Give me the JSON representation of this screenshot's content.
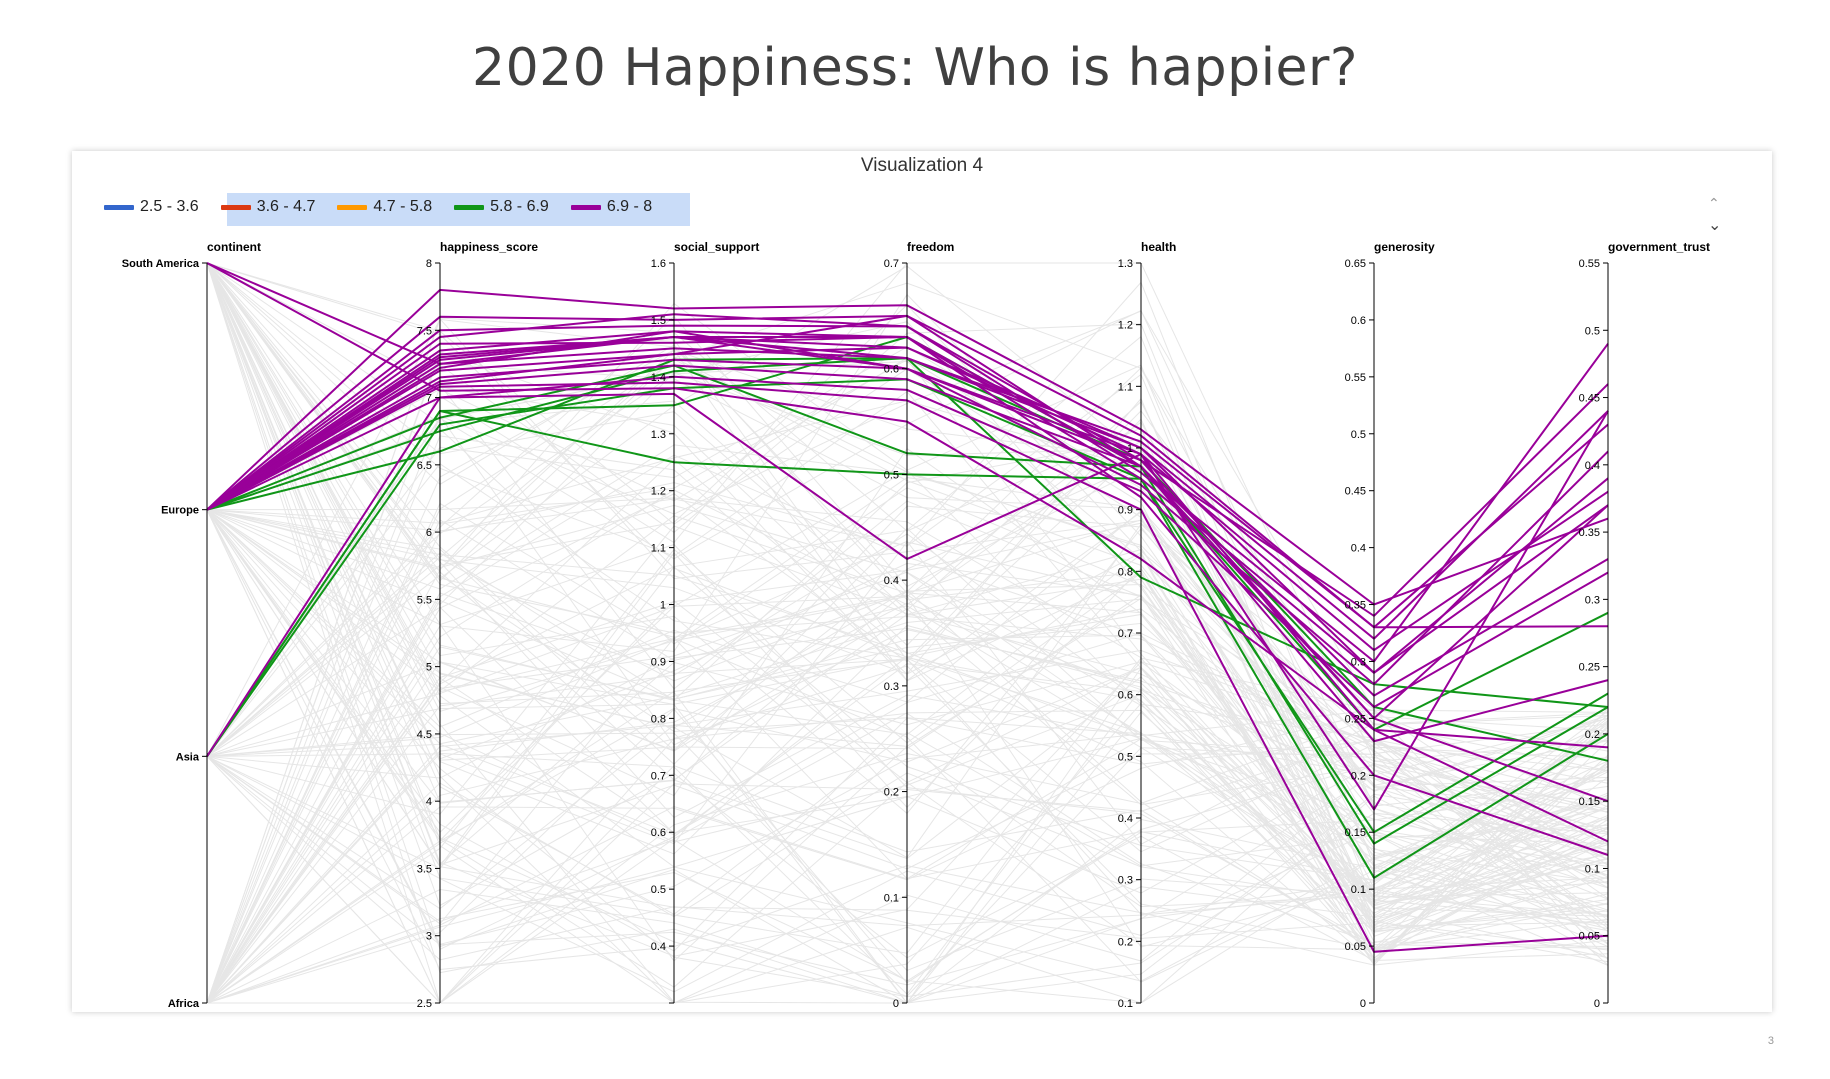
{
  "slide": {
    "title": "2020 Happiness: Who is happier?",
    "page_number": "3"
  },
  "panel": {
    "title": "Visualization 4"
  },
  "nav": {
    "up_icon": "chevron-up-icon",
    "down_icon": "chevron-down-icon"
  },
  "chart_data": {
    "type": "parallel-coordinates",
    "title": "Visualization 4",
    "legend": {
      "placement": "top-left",
      "entries": [
        {
          "label": "2.5 - 3.6",
          "color": "#3366cc",
          "highlighted": false
        },
        {
          "label": "3.6 - 4.7",
          "color": "#dc3912",
          "highlighted": true
        },
        {
          "label": "4.7 - 5.8",
          "color": "#ff9900",
          "highlighted": true
        },
        {
          "label": "5.8 - 6.9",
          "color": "#109618",
          "highlighted": true
        },
        {
          "label": "6.9 - 8",
          "color": "#990099",
          "highlighted": true
        }
      ]
    },
    "context_line_color": "#e6e6e6",
    "axes": [
      {
        "name": "continent",
        "type": "categorical",
        "categories": [
          "South America",
          "Europe",
          "Asia",
          "Africa"
        ]
      },
      {
        "name": "happiness_score",
        "type": "linear",
        "domain": [
          2.5,
          8
        ],
        "ticks": [
          "2.5",
          "3",
          "3.5",
          "4",
          "4.5",
          "5",
          "5.5",
          "6",
          "6.5",
          "7",
          "7.5",
          "8"
        ]
      },
      {
        "name": "social_support",
        "type": "linear",
        "domain": [
          0.3,
          1.6
        ],
        "ticks": [
          "0.4",
          "0.5",
          "0.6",
          "0.7",
          "0.8",
          "0.9",
          "1",
          "1.1",
          "1.2",
          "1.3",
          "1.4",
          "1.5",
          "1.6"
        ]
      },
      {
        "name": "freedom",
        "type": "linear",
        "domain": [
          0,
          0.7
        ],
        "ticks": [
          "0",
          "0.1",
          "0.2",
          "0.3",
          "0.4",
          "0.5",
          "0.6",
          "0.7"
        ]
      },
      {
        "name": "health",
        "type": "linear",
        "domain": [
          0.1,
          1.3
        ],
        "ticks": [
          "0.1",
          "0.2",
          "0.3",
          "0.4",
          "0.5",
          "0.6",
          "0.7",
          "0.8",
          "0.9",
          "1",
          "1.1",
          "1.2",
          "1.3"
        ]
      },
      {
        "name": "generosity",
        "type": "linear",
        "domain": [
          0,
          0.65
        ],
        "ticks": [
          "0",
          "0.05",
          "0.1",
          "0.15",
          "0.2",
          "0.25",
          "0.3",
          "0.35",
          "0.4",
          "0.45",
          "0.5",
          "0.55",
          "0.6",
          "0.65"
        ]
      },
      {
        "name": "government_trust",
        "type": "linear",
        "domain": [
          0,
          0.55
        ],
        "ticks": [
          "0",
          "0.05",
          "0.1",
          "0.15",
          "0.2",
          "0.25",
          "0.3",
          "0.35",
          "0.4",
          "0.45",
          "0.5",
          "0.55"
        ]
      }
    ],
    "series": [
      {
        "group": "6.9 - 8",
        "values": [
          "South America",
          7.05,
          1.38,
          0.55,
          0.82,
          0.24,
          0.12
        ]
      },
      {
        "group": "6.9 - 8",
        "values": [
          "Europe",
          7.2,
          1.44,
          0.62,
          1.0,
          0.32,
          0.44
        ]
      },
      {
        "group": "6.9 - 8",
        "values": [
          "Europe",
          7.35,
          1.48,
          0.63,
          0.95,
          0.29,
          0.37
        ]
      },
      {
        "group": "6.9 - 8",
        "values": [
          "Europe",
          7.45,
          1.51,
          0.64,
          0.98,
          0.34,
          0.46
        ]
      },
      {
        "group": "6.9 - 8",
        "values": [
          "Europe",
          7.1,
          1.42,
          0.59,
          0.97,
          0.27,
          0.33
        ]
      },
      {
        "group": "6.9 - 8",
        "values": [
          "Europe",
          7.25,
          1.45,
          0.61,
          1.01,
          0.33,
          0.28
        ]
      },
      {
        "group": "6.9 - 8",
        "values": [
          "Europe",
          7.3,
          1.47,
          0.62,
          0.99,
          0.31,
          0.38
        ]
      },
      {
        "group": "6.9 - 8",
        "values": [
          "Europe",
          7.5,
          1.49,
          0.64,
          0.96,
          0.3,
          0.49
        ]
      },
      {
        "group": "6.9 - 8",
        "values": [
          "Europe",
          7.6,
          1.5,
          0.65,
          1.02,
          0.33,
          0.43
        ]
      },
      {
        "group": "6.9 - 8",
        "values": [
          "Europe",
          7.8,
          1.52,
          0.66,
          1.03,
          0.35,
          0.36
        ]
      },
      {
        "group": "6.9 - 8",
        "values": [
          "Europe",
          7.15,
          1.43,
          0.6,
          0.94,
          0.28,
          0.41
        ]
      },
      {
        "group": "6.9 - 8",
        "values": [
          "Europe",
          7.0,
          1.4,
          0.58,
          0.93,
          0.26,
          0.32
        ]
      },
      {
        "group": "6.9 - 8",
        "values": [
          "Europe",
          7.4,
          1.46,
          0.63,
          0.92,
          0.2,
          0.11
        ]
      },
      {
        "group": "6.9 - 8",
        "values": [
          "Europe",
          7.22,
          1.48,
          0.6,
          0.98,
          0.25,
          0.15
        ]
      },
      {
        "group": "6.9 - 8",
        "values": [
          "Europe",
          7.08,
          1.39,
          0.57,
          0.9,
          0.045,
          0.05
        ]
      },
      {
        "group": "6.9 - 8",
        "values": [
          "Europe",
          7.28,
          1.47,
          0.63,
          0.97,
          0.25,
          0.37
        ]
      },
      {
        "group": "6.9 - 8",
        "values": [
          "Europe",
          7.32,
          1.47,
          0.61,
          1.0,
          0.29,
          0.39
        ]
      },
      {
        "group": "6.9 - 8",
        "values": [
          "Europe",
          7.12,
          1.44,
          0.65,
          0.97,
          0.23,
          0.24
        ]
      },
      {
        "group": "6.9 - 8",
        "values": [
          "Asia",
          7.0,
          1.37,
          0.42,
          0.99,
          0.24,
          0.19
        ]
      },
      {
        "group": "6.9 - 8",
        "values": [
          "South America",
          7.25,
          1.47,
          0.6,
          0.99,
          0.17,
          0.44
        ]
      },
      {
        "group": "5.8 - 6.9",
        "values": [
          "Europe",
          6.85,
          1.42,
          0.52,
          0.97,
          0.24,
          0.29
        ]
      },
      {
        "group": "5.8 - 6.9",
        "values": [
          "Europe",
          6.75,
          1.41,
          0.61,
          0.98,
          0.26,
          0.18
        ]
      },
      {
        "group": "5.8 - 6.9",
        "values": [
          "Europe",
          6.6,
          1.43,
          0.61,
          0.79,
          0.28,
          0.22
        ]
      },
      {
        "group": "5.8 - 6.9",
        "values": [
          "Asia",
          6.9,
          1.25,
          0.5,
          0.95,
          0.11,
          0.2
        ]
      },
      {
        "group": "5.8 - 6.9",
        "values": [
          "Asia",
          6.9,
          1.35,
          0.63,
          0.97,
          0.14,
          0.22
        ]
      },
      {
        "group": "5.8 - 6.9",
        "values": [
          "Asia",
          6.8,
          1.38,
          0.59,
          0.95,
          0.15,
          0.23
        ]
      }
    ]
  }
}
